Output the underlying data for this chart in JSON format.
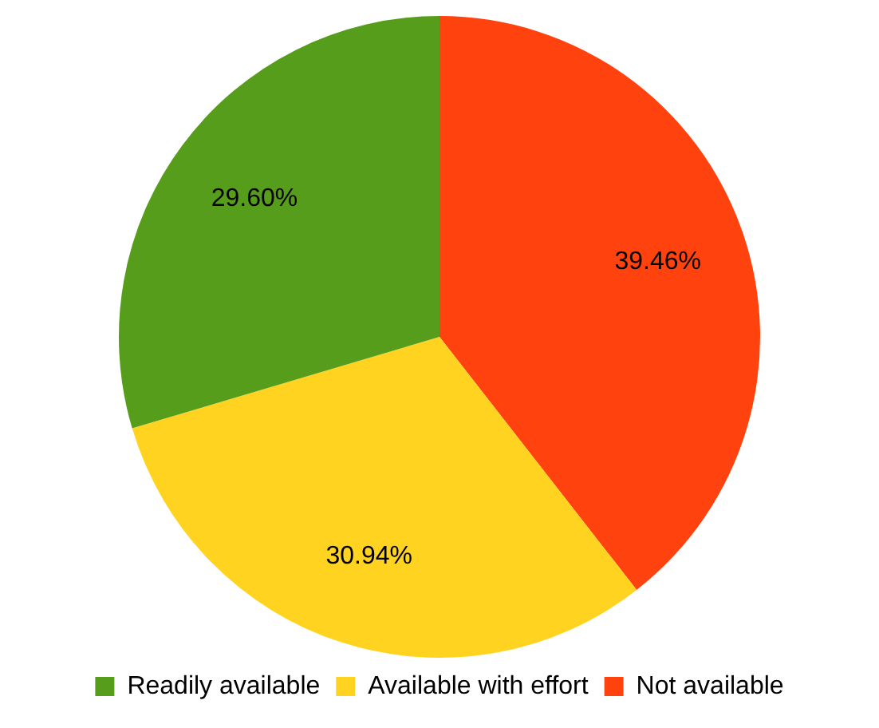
{
  "chart_data": {
    "type": "pie",
    "categories": [
      "Readily available",
      "Available with effort",
      "Not available"
    ],
    "values": [
      29.6,
      30.94,
      39.46
    ],
    "colors": [
      "#579d1c",
      "#ffd320",
      "#ff420e"
    ],
    "value_labels": [
      "29.60%",
      "30.94%",
      "39.46%"
    ],
    "legend": "bottom"
  }
}
